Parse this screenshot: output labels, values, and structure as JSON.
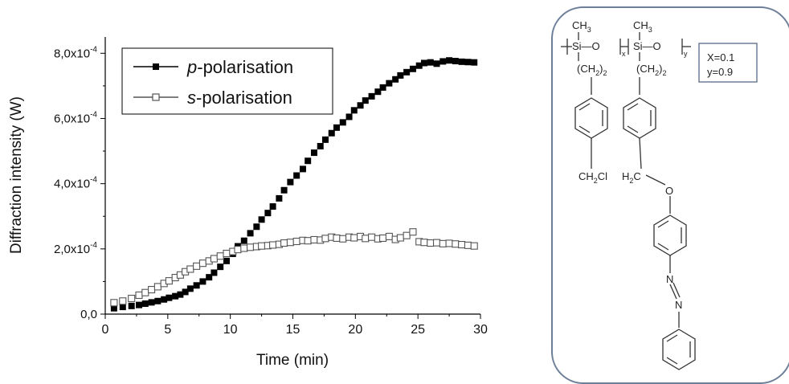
{
  "chart_data": {
    "type": "scatter",
    "xlabel": "Time (min)",
    "ylabel": "Diffraction intensity (W)",
    "xlim": [
      0,
      30
    ],
    "ylim": [
      0,
      0.00085
    ],
    "x_ticks": [
      "0",
      "5",
      "10",
      "15",
      "20",
      "25",
      "30"
    ],
    "y_ticks": [
      {
        "mantissa": "0,0",
        "exp": ""
      },
      {
        "mantissa": "2,0x10",
        "exp": "-4"
      },
      {
        "mantissa": "4,0x10",
        "exp": "-4"
      },
      {
        "mantissa": "6,0x10",
        "exp": "-4"
      },
      {
        "mantissa": "8,0x10",
        "exp": "-4"
      }
    ],
    "legend_position": "top-left",
    "series": [
      {
        "name": "p-polarisation",
        "name_italic": "p",
        "name_rest": "-polarisation",
        "marker": "filled-square",
        "color": "#000000",
        "x": [
          0.7,
          1.4,
          2.1,
          2.7,
          3.2,
          3.7,
          4.2,
          4.7,
          5.1,
          5.6,
          6.0,
          6.4,
          6.8,
          7.3,
          7.8,
          8.3,
          8.7,
          9.2,
          9.7,
          10.2,
          10.6,
          11.1,
          11.6,
          12.1,
          12.5,
          13.0,
          13.4,
          13.9,
          14.3,
          14.8,
          15.3,
          15.8,
          16.2,
          16.7,
          17.2,
          17.6,
          18.1,
          18.5,
          19.0,
          19.5,
          19.9,
          20.4,
          20.8,
          21.3,
          21.8,
          22.2,
          22.7,
          23.2,
          23.6,
          24.1,
          24.6,
          25.1,
          25.5,
          26.0,
          26.5,
          27.0,
          27.5,
          28.0,
          28.5,
          29.0,
          29.5
        ],
        "y": [
          1.8e-05,
          2.2e-05,
          2.5e-05,
          2.8e-05,
          3.2e-05,
          3.6e-05,
          4e-05,
          4.5e-05,
          5e-05,
          5.5e-05,
          6e-05,
          6.8e-05,
          7.8e-05,
          8.8e-05,
          0.0001,
          0.000113,
          0.000127,
          0.000145,
          0.000163,
          0.000185,
          0.000208,
          0.000225,
          0.000248,
          0.000268,
          0.00029,
          0.00031,
          0.00033,
          0.000355,
          0.00038,
          0.000405,
          0.000425,
          0.000445,
          0.00047,
          0.000495,
          0.000515,
          0.000535,
          0.000555,
          0.000572,
          0.000588,
          0.000605,
          0.000625,
          0.00064,
          0.000655,
          0.000668,
          0.000682,
          0.000695,
          0.000708,
          0.00072,
          0.000732,
          0.000742,
          0.000752,
          0.000762,
          0.00077,
          0.000772,
          0.000768,
          0.000775,
          0.000778,
          0.000776,
          0.000774,
          0.000773,
          0.000772
        ]
      },
      {
        "name": "s-polarisation",
        "name_italic": "s",
        "name_rest": "-polarisation",
        "marker": "open-square",
        "color": "#555555",
        "x": [
          0.7,
          1.4,
          2.1,
          2.7,
          3.2,
          3.7,
          4.2,
          4.7,
          5.1,
          5.6,
          6.0,
          6.4,
          6.8,
          7.3,
          7.8,
          8.3,
          8.7,
          9.2,
          9.7,
          10.2,
          10.6,
          11.1,
          11.6,
          12.1,
          12.5,
          13.0,
          13.4,
          13.9,
          14.3,
          14.8,
          15.3,
          15.8,
          16.2,
          16.7,
          17.2,
          17.6,
          18.1,
          18.5,
          19.0,
          19.5,
          19.9,
          20.4,
          20.8,
          21.3,
          21.8,
          22.2,
          22.7,
          23.2,
          23.6,
          24.1,
          24.6,
          25.1,
          25.5,
          26.0,
          26.5,
          27.0,
          27.5,
          28.0,
          28.5,
          29.0,
          29.5
        ],
        "y": [
          3.5e-05,
          4e-05,
          4.8e-05,
          5.8e-05,
          6.6e-05,
          7.5e-05,
          8.4e-05,
          9.4e-05,
          0.000102,
          0.000112,
          0.00012,
          0.00013,
          0.000138,
          0.000147,
          0.000156,
          0.000163,
          0.00017,
          0.000178,
          0.000186,
          0.000192,
          0.000198,
          0.000202,
          0.000205,
          0.000207,
          0.000209,
          0.00021,
          0.000212,
          0.000214,
          0.000218,
          0.00022,
          0.000223,
          0.000226,
          0.000225,
          0.000228,
          0.000227,
          0.000232,
          0.000236,
          0.000233,
          0.000231,
          0.000236,
          0.000234,
          0.000238,
          0.000232,
          0.000236,
          0.000231,
          0.000233,
          0.000238,
          0.000229,
          0.000234,
          0.000241,
          0.000252,
          0.000222,
          0.00022,
          0.000218,
          0.000219,
          0.000216,
          0.000217,
          0.000215,
          0.000213,
          0.000211,
          0.000209
        ]
      }
    ]
  },
  "structure": {
    "ch3_left": "CH",
    "ch3_right": "CH",
    "ch3_sub": "3",
    "si_o_left": "Si—O",
    "si_o_right": "Si—O",
    "sub_x": "x",
    "sub_y": "y",
    "ch2_left": "(CH",
    "ch2_right": "(CH",
    "ch2_sub": "2",
    "ch2_close": ")",
    "ch2_tail": "2",
    "ch2cl": "CH",
    "ch2cl_sub": "2",
    "ch2cl_tail": "Cl",
    "h2c": "H",
    "h2c_sub": "2",
    "h2c_tail": "C",
    "oxygen": "O",
    "n1": "N",
    "n2": "N",
    "ratio_x": "X=0.1",
    "ratio_y": "y=0.9"
  }
}
